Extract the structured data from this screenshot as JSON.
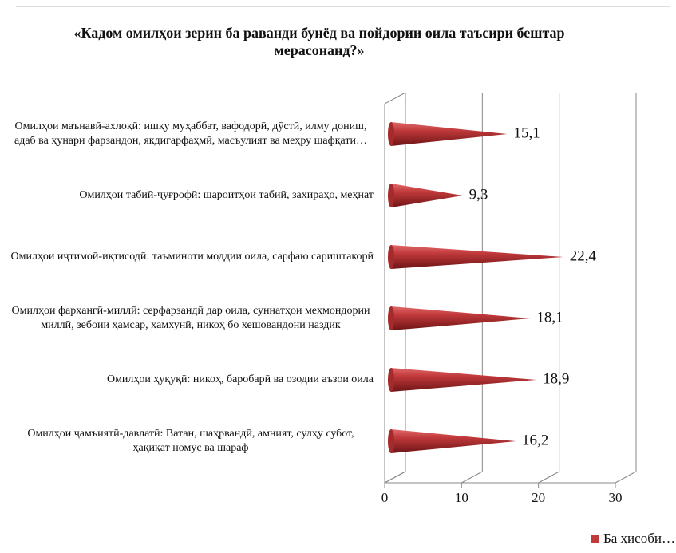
{
  "chart_data": {
    "type": "bar",
    "title": "«Кадом омилҳои зерин ба раванди бунёд ва пойдории оила таъсири бештар мерасонанд?»",
    "categories": [
      "Омилҳои маънавӣ-ахлоқӣ: ишқу муҳаббат, вафодорӣ, дӯстӣ, илму дониш, адаб ва ҳунари фарзандон, якдигарфаҳмӣ, масъулият ва меҳру шафқати…",
      "Омилҳои табиӣ-ҷуғрофӣ: шароитҳои табиӣ, захираҳо, меҳнат",
      "Омилҳои иҷтимоӣ-иқтисодӣ:  таъминоти моддии оила, сарфаю сариштакорӣ",
      "Омилҳои фарҳангӣ-миллӣ: серфарзандӣ дар оила, суннатҳои меҳмондории миллӣ, зебоии ҳамсар, ҳамхунӣ, никоҳ бо хешовандони наздик",
      "Омилҳои ҳуқуқӣ: никоҳ, баробарӣ ва озодии аъзои оила",
      "Омилҳои ҷамъиятӣ-давлатӣ: Ватан, шаҳрвандӣ, амният, сулҳу субот, ҳақиқат номус ва шараф"
    ],
    "series": [
      {
        "name": "Ба ҳисоби…",
        "color": "#c0393b",
        "values": [
          15.1,
          9.3,
          22.4,
          18.1,
          18.9,
          16.2
        ],
        "value_labels": [
          "15,1",
          "9,3",
          "22,4",
          "18,1",
          "18,9",
          "16,2"
        ]
      }
    ],
    "xlim": [
      0,
      30
    ],
    "xticks": [
      0,
      10,
      20,
      30
    ],
    "grid": true,
    "legend": "bottom-right"
  }
}
